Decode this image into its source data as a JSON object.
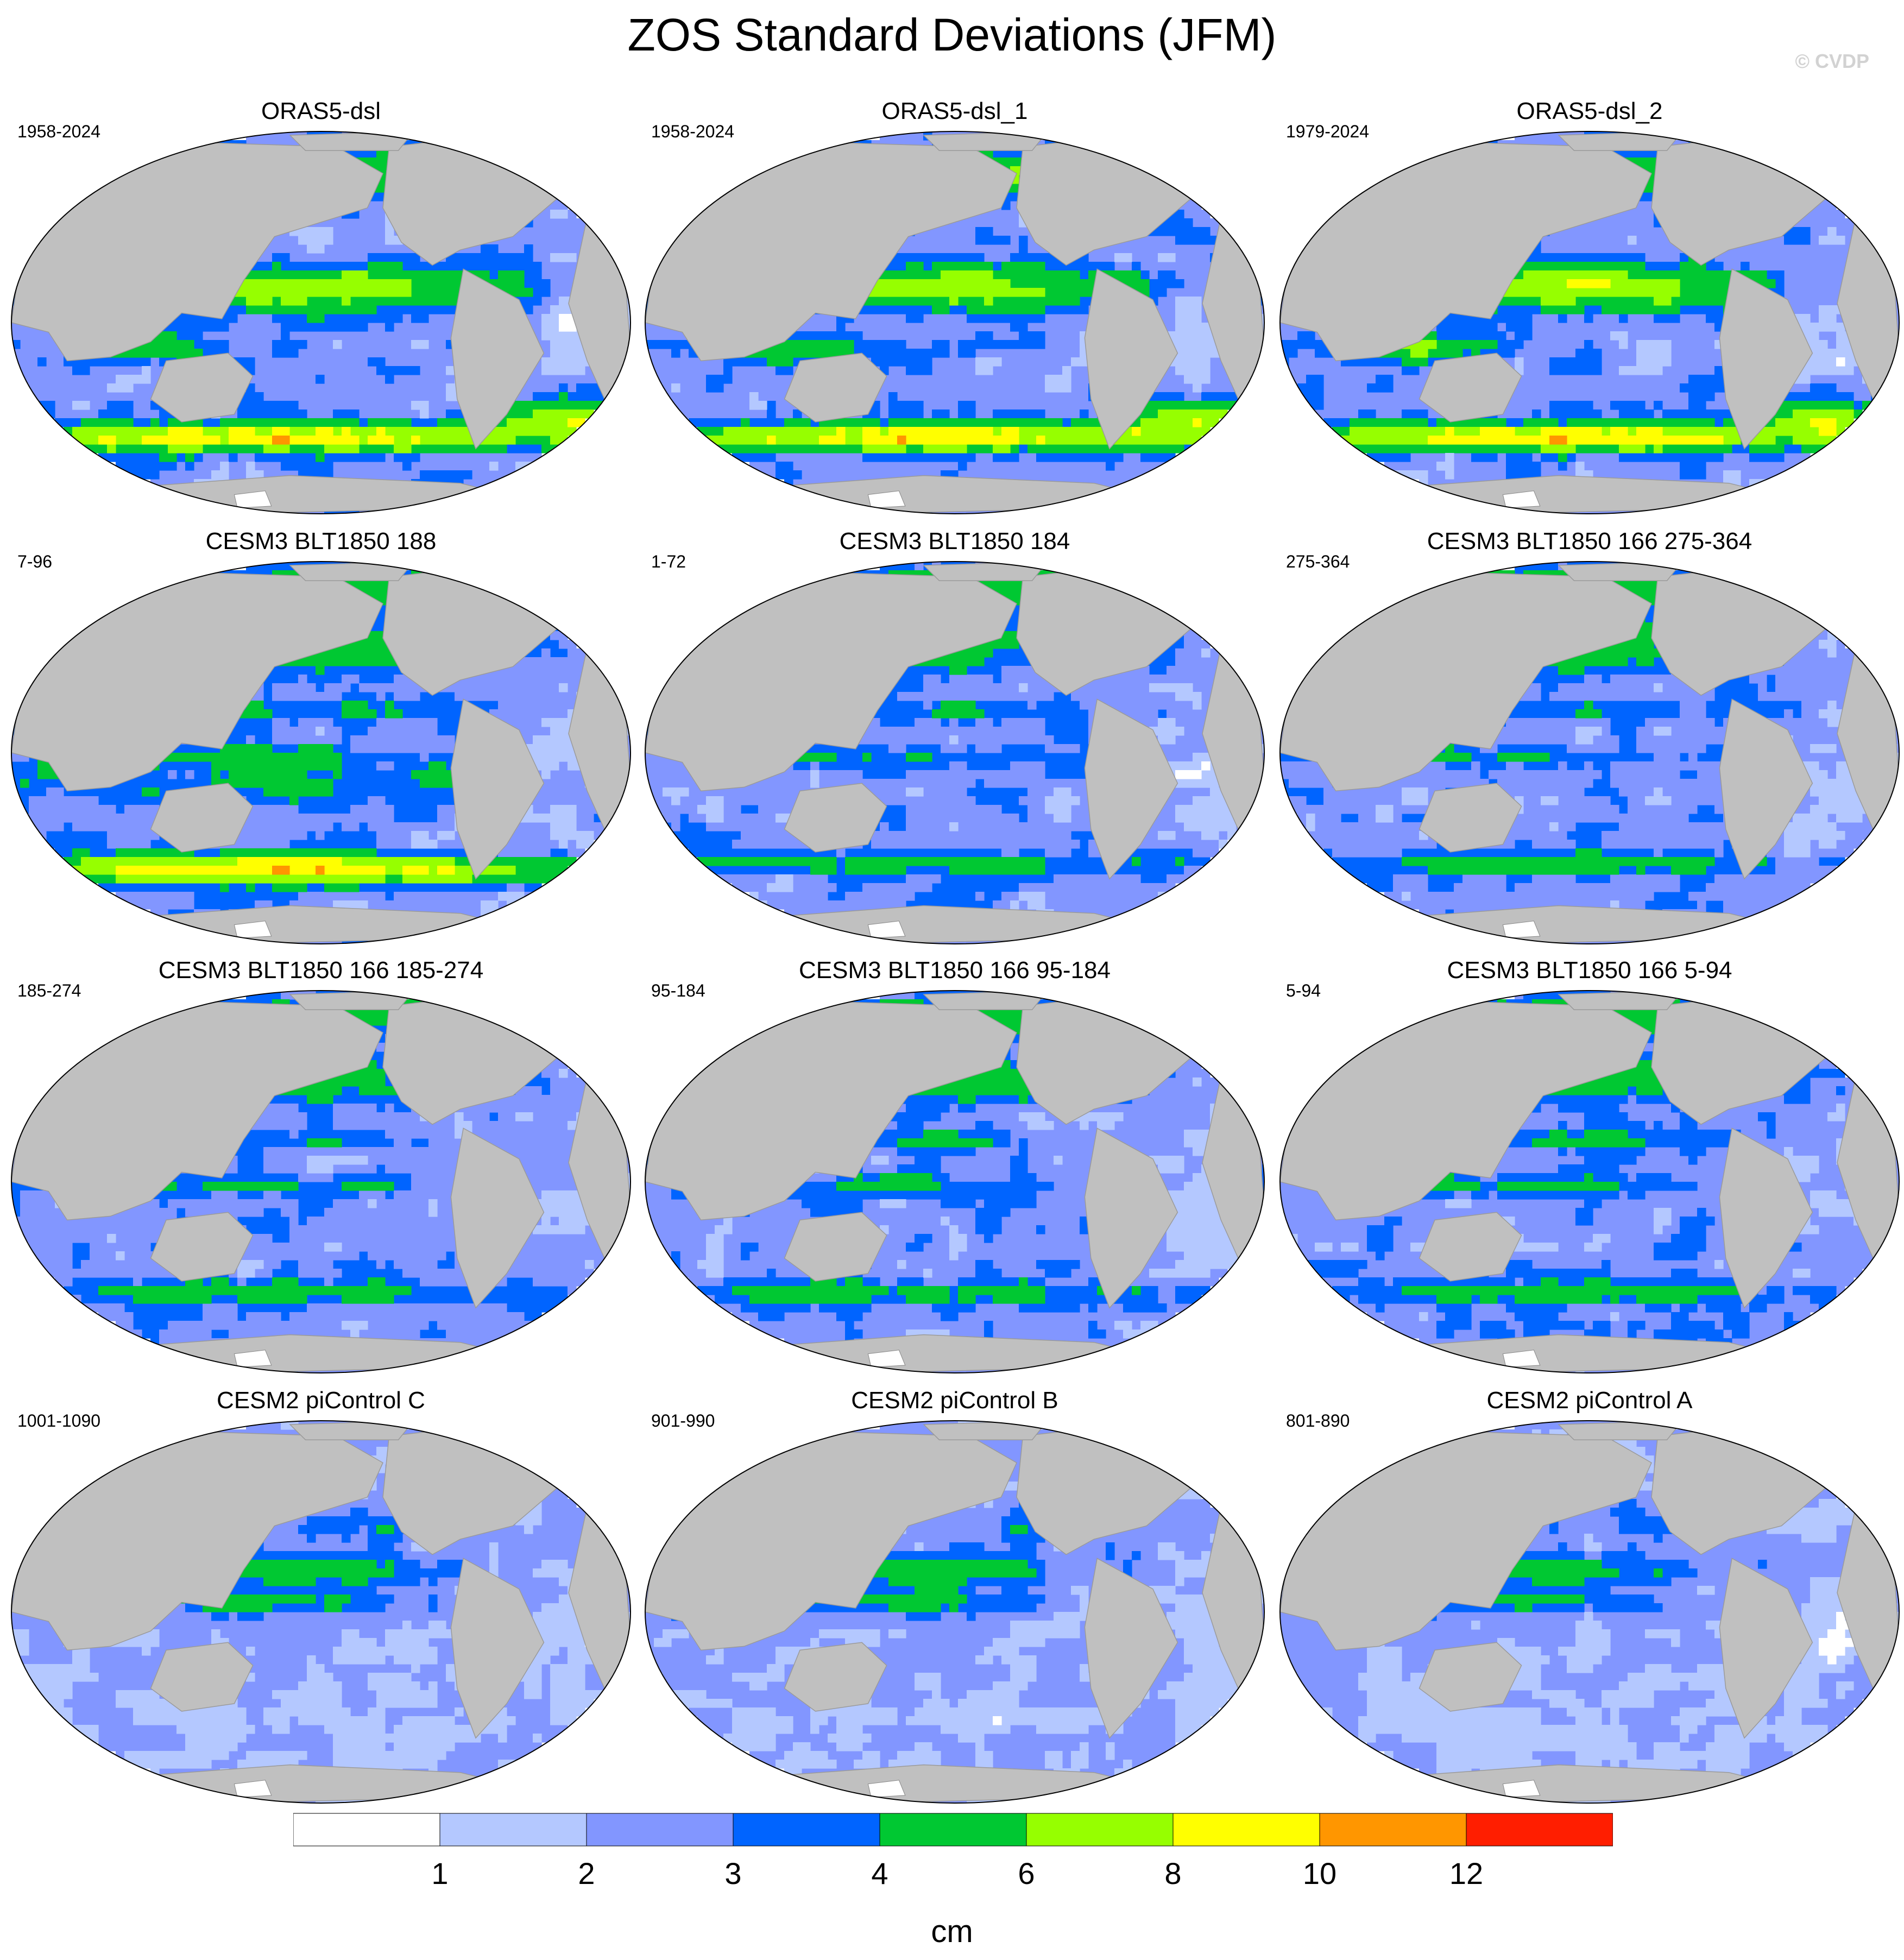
{
  "title": "ZOS Standard Deviations (JFM)",
  "watermark": "© CVDP",
  "panels": [
    {
      "title": "ORAS5-dsl",
      "years": "1958-2024",
      "regime": "obs"
    },
    {
      "title": "ORAS5-dsl_1",
      "years": "1958-2024",
      "regime": "obs"
    },
    {
      "title": "ORAS5-dsl_2",
      "years": "1979-2024",
      "regime": "obs"
    },
    {
      "title": "CESM3 BLT1850 188",
      "years": "7-96",
      "regime": "cesm3-strong"
    },
    {
      "title": "CESM3 BLT1850 184",
      "years": "1-72",
      "regime": "cesm3"
    },
    {
      "title": "CESM3 BLT1850 166 275-364",
      "years": "275-364",
      "regime": "cesm3"
    },
    {
      "title": "CESM3 BLT1850 166 185-274",
      "years": "185-274",
      "regime": "cesm3"
    },
    {
      "title": "CESM3 BLT1850 166 95-184",
      "years": "95-184",
      "regime": "cesm3"
    },
    {
      "title": "CESM3 BLT1850 166 5-94",
      "years": "5-94",
      "regime": "cesm3"
    },
    {
      "title": "CESM2 piControl C",
      "years": "1001-1090",
      "regime": "cesm2"
    },
    {
      "title": "CESM2 piControl B",
      "years": "901-990",
      "regime": "cesm2"
    },
    {
      "title": "CESM2 piControl A",
      "years": "801-890",
      "regime": "cesm2"
    }
  ],
  "colorbar": {
    "units": "cm",
    "levels": [
      1,
      2,
      3,
      4,
      6,
      8,
      10,
      12
    ],
    "labels": [
      "1",
      "2",
      "3",
      "4",
      "6",
      "8",
      "10",
      "12"
    ],
    "colors": [
      "#ffffff",
      "#b4c8ff",
      "#8296ff",
      "#0064ff",
      "#00c832",
      "#96ff00",
      "#ffff00",
      "#ff9600",
      "#ff1e00"
    ]
  },
  "land_color": "#c0c0c0"
}
